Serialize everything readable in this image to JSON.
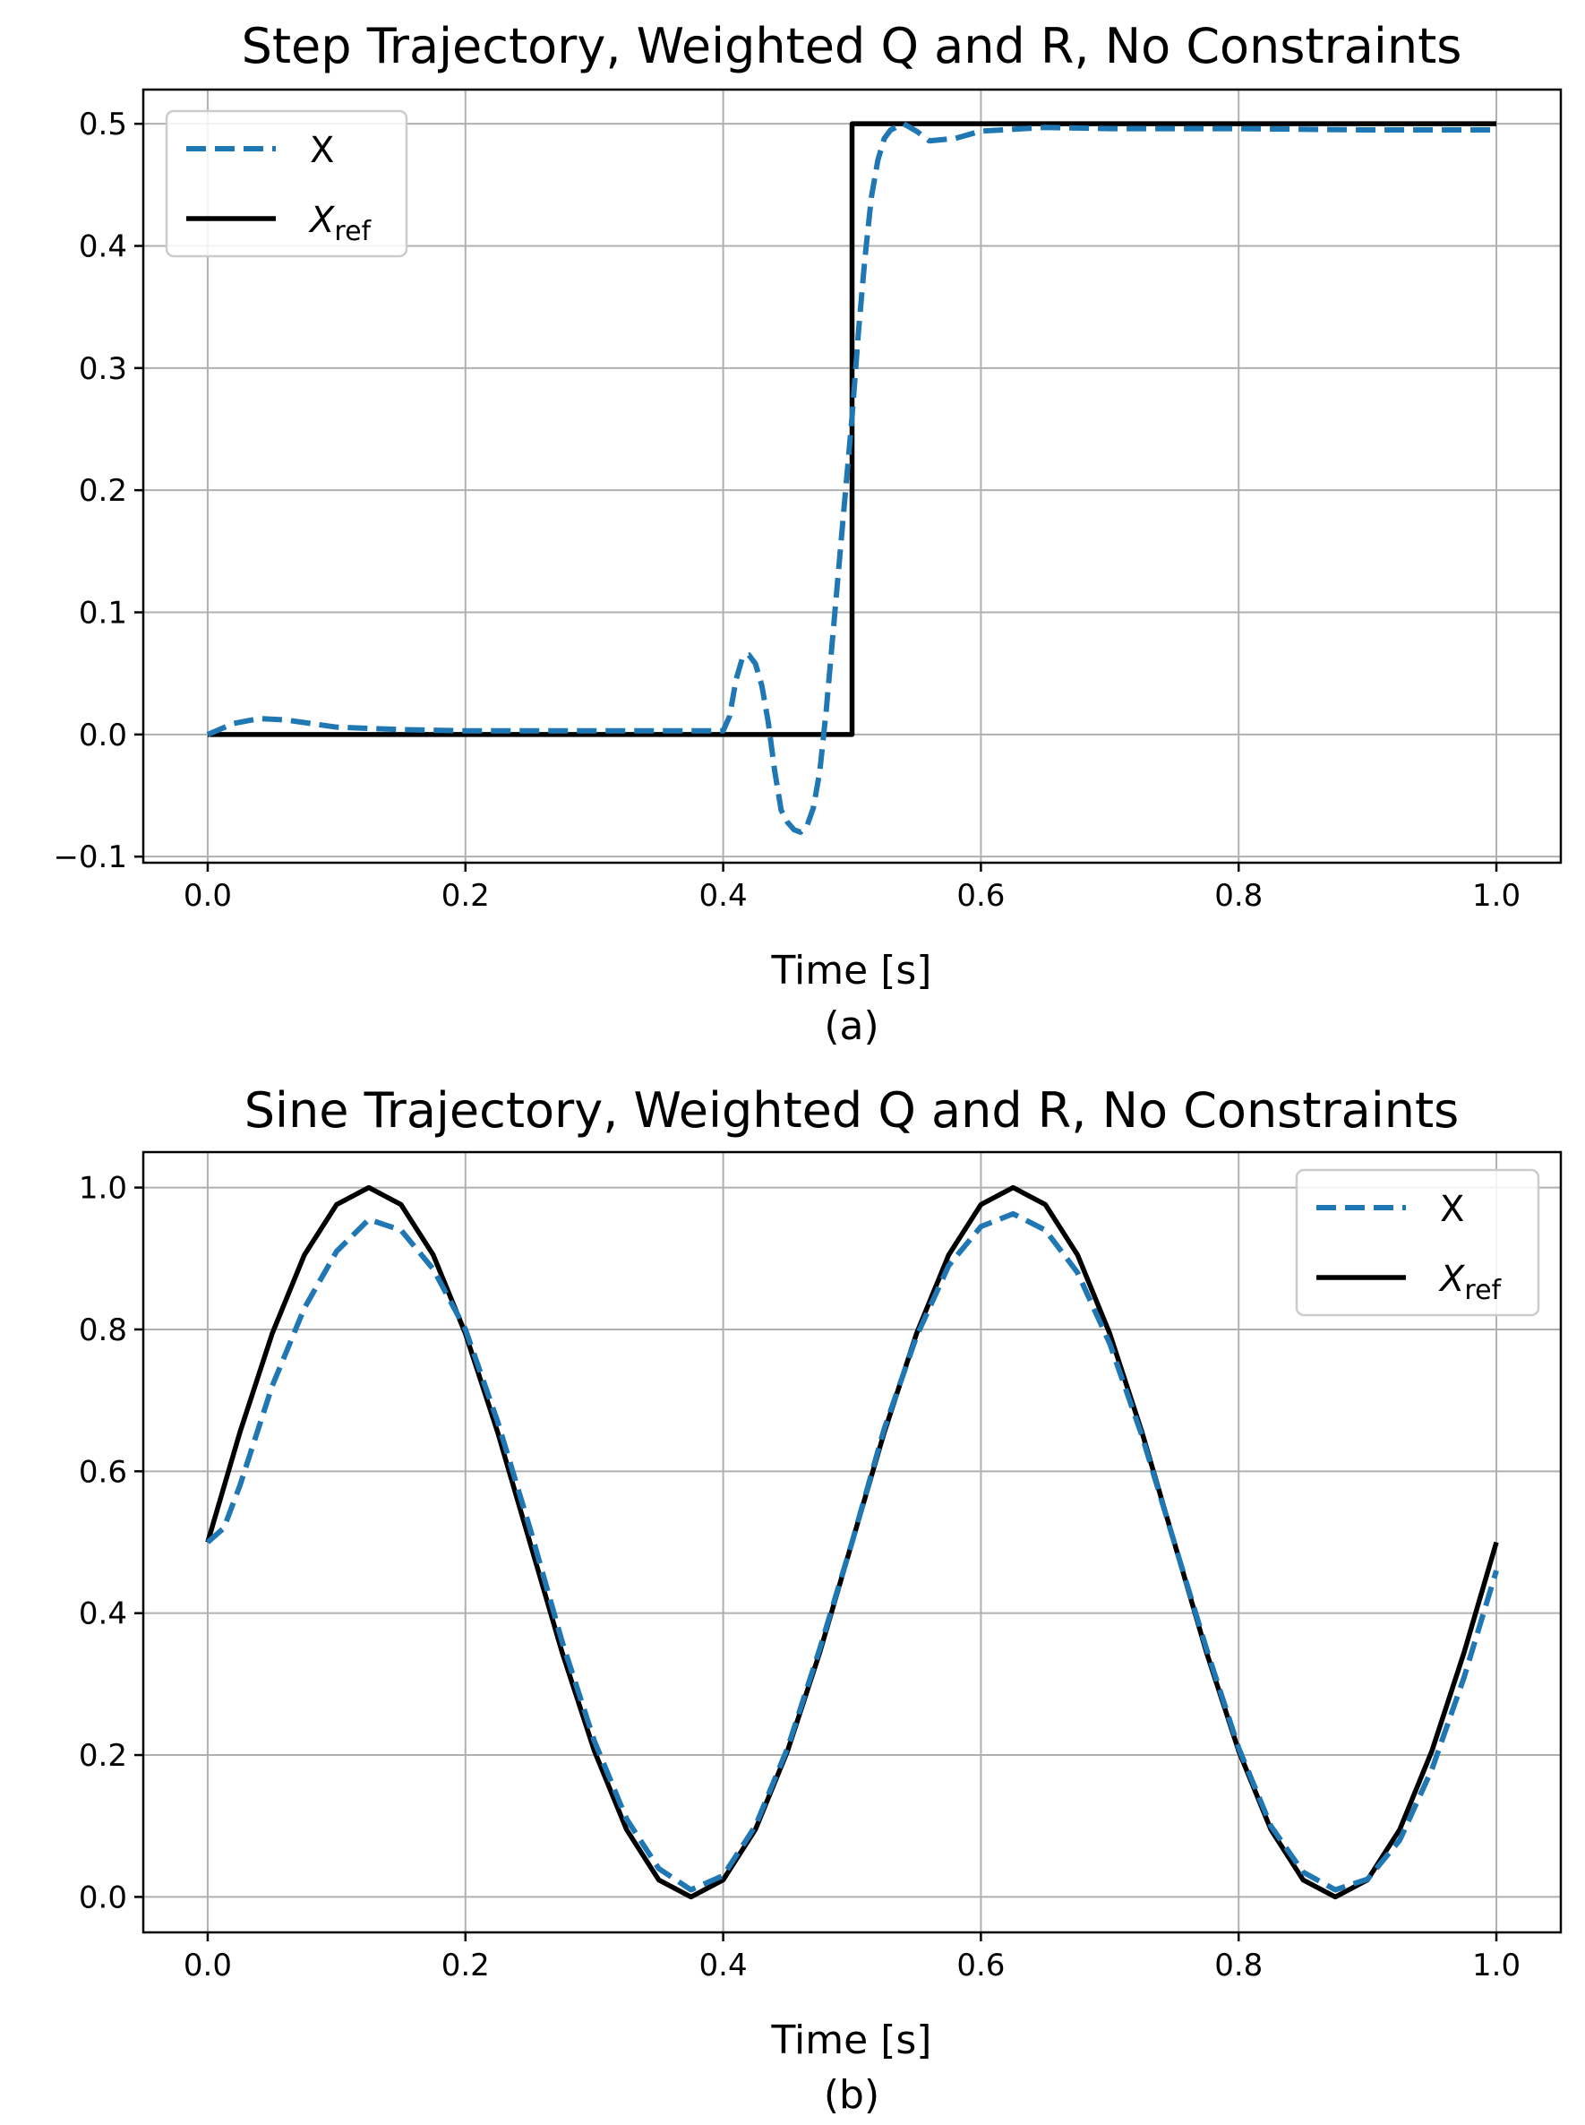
{
  "colors": {
    "series_x": "#1f77b4",
    "series_ref": "#000000",
    "grid": "#b0b0b0",
    "legend_border": "#cccccc"
  },
  "chart_data": [
    {
      "type": "line",
      "title": "Step Trajectory, Weighted Q and R, No Constraints",
      "xlabel": "Time [s]",
      "ylabel": "",
      "caption": "(a)",
      "xlim": [
        -0.05,
        1.05
      ],
      "ylim": [
        -0.105,
        0.528
      ],
      "xticks": [
        0.0,
        0.2,
        0.4,
        0.6,
        0.8,
        1.0
      ],
      "xtick_labels": [
        "0.0",
        "0.2",
        "0.4",
        "0.6",
        "0.8",
        "1.0"
      ],
      "yticks": [
        -0.1,
        0.0,
        0.1,
        0.2,
        0.3,
        0.4,
        0.5
      ],
      "ytick_labels": [
        "−0.1",
        "0.0",
        "0.1",
        "0.2",
        "0.3",
        "0.4",
        "0.5"
      ],
      "grid": true,
      "legend_position": "upper left",
      "series": [
        {
          "name": "X",
          "style": "dashed",
          "color": "#1f77b4",
          "x": [
            0.0,
            0.02,
            0.04,
            0.06,
            0.08,
            0.1,
            0.15,
            0.2,
            0.3,
            0.4,
            0.405,
            0.41,
            0.415,
            0.42,
            0.425,
            0.43,
            0.435,
            0.44,
            0.445,
            0.45,
            0.455,
            0.46,
            0.465,
            0.47,
            0.475,
            0.48,
            0.485,
            0.49,
            0.495,
            0.5,
            0.505,
            0.51,
            0.515,
            0.52,
            0.525,
            0.53,
            0.54,
            0.55,
            0.56,
            0.58,
            0.6,
            0.65,
            0.7,
            0.8,
            0.9,
            1.0
          ],
          "y": [
            0.0,
            0.009,
            0.013,
            0.012,
            0.009,
            0.006,
            0.004,
            0.003,
            0.003,
            0.003,
            0.015,
            0.045,
            0.063,
            0.065,
            0.058,
            0.04,
            0.01,
            -0.03,
            -0.062,
            -0.072,
            -0.078,
            -0.08,
            -0.075,
            -0.06,
            -0.03,
            0.02,
            0.08,
            0.14,
            0.2,
            0.26,
            0.33,
            0.39,
            0.44,
            0.47,
            0.488,
            0.495,
            0.5,
            0.494,
            0.486,
            0.488,
            0.494,
            0.497,
            0.496,
            0.496,
            0.495,
            0.495
          ]
        },
        {
          "name": "X_ref",
          "style": "solid",
          "color": "#000000",
          "x": [
            0.0,
            0.5,
            0.5,
            1.0
          ],
          "y": [
            0.0,
            0.0,
            0.5,
            0.5
          ]
        }
      ],
      "legend": [
        {
          "label": "X",
          "style": "dashed"
        },
        {
          "label": "X",
          "subscript": "ref",
          "style": "solid"
        }
      ]
    },
    {
      "type": "line",
      "title": "Sine Trajectory, Weighted Q and R, No Constraints",
      "xlabel": "Time [s]",
      "ylabel": "",
      "caption": "(b)",
      "xlim": [
        -0.05,
        1.05
      ],
      "ylim": [
        -0.05,
        1.05
      ],
      "xticks": [
        0.0,
        0.2,
        0.4,
        0.6,
        0.8,
        1.0
      ],
      "xtick_labels": [
        "0.0",
        "0.2",
        "0.4",
        "0.6",
        "0.8",
        "1.0"
      ],
      "yticks": [
        0.0,
        0.2,
        0.4,
        0.6,
        0.8,
        1.0
      ],
      "ytick_labels": [
        "0.0",
        "0.2",
        "0.4",
        "0.6",
        "0.8",
        "1.0"
      ],
      "grid": true,
      "legend_position": "upper right",
      "series": [
        {
          "name": "X",
          "style": "dashed",
          "color": "#1f77b4",
          "x": [
            0.0,
            0.0125,
            0.025,
            0.05,
            0.075,
            0.1,
            0.125,
            0.15,
            0.175,
            0.2,
            0.225,
            0.25,
            0.275,
            0.3,
            0.325,
            0.35,
            0.375,
            0.4,
            0.425,
            0.45,
            0.475,
            0.5,
            0.525,
            0.55,
            0.575,
            0.6,
            0.625,
            0.65,
            0.675,
            0.7,
            0.725,
            0.75,
            0.775,
            0.8,
            0.825,
            0.85,
            0.875,
            0.9,
            0.925,
            0.95,
            0.975,
            1.0
          ],
          "y": [
            0.5,
            0.52,
            0.58,
            0.72,
            0.83,
            0.91,
            0.955,
            0.94,
            0.885,
            0.8,
            0.67,
            0.52,
            0.36,
            0.22,
            0.11,
            0.04,
            0.01,
            0.03,
            0.1,
            0.21,
            0.35,
            0.5,
            0.66,
            0.79,
            0.89,
            0.945,
            0.963,
            0.94,
            0.88,
            0.78,
            0.65,
            0.5,
            0.35,
            0.21,
            0.1,
            0.035,
            0.01,
            0.025,
            0.08,
            0.18,
            0.31,
            0.46
          ]
        },
        {
          "name": "X_ref",
          "style": "solid",
          "color": "#000000",
          "function": "0.5 + 0.5*sin(4*pi*t)",
          "x": [
            0.0,
            0.025,
            0.05,
            0.075,
            0.1,
            0.125,
            0.15,
            0.175,
            0.2,
            0.225,
            0.25,
            0.275,
            0.3,
            0.325,
            0.35,
            0.375,
            0.4,
            0.425,
            0.45,
            0.475,
            0.5,
            0.525,
            0.55,
            0.575,
            0.6,
            0.625,
            0.65,
            0.675,
            0.7,
            0.725,
            0.75,
            0.775,
            0.8,
            0.825,
            0.85,
            0.875,
            0.9,
            0.925,
            0.95,
            0.975,
            1.0
          ],
          "y": [
            0.5,
            0.655,
            0.794,
            0.905,
            0.976,
            1.0,
            0.976,
            0.905,
            0.794,
            0.655,
            0.5,
            0.345,
            0.206,
            0.095,
            0.024,
            0.0,
            0.024,
            0.095,
            0.206,
            0.345,
            0.5,
            0.655,
            0.794,
            0.905,
            0.976,
            1.0,
            0.976,
            0.905,
            0.794,
            0.655,
            0.5,
            0.345,
            0.206,
            0.095,
            0.024,
            0.0,
            0.024,
            0.095,
            0.206,
            0.345,
            0.5
          ]
        }
      ],
      "legend": [
        {
          "label": "X",
          "style": "dashed"
        },
        {
          "label": "X",
          "subscript": "ref",
          "style": "solid"
        }
      ]
    }
  ]
}
